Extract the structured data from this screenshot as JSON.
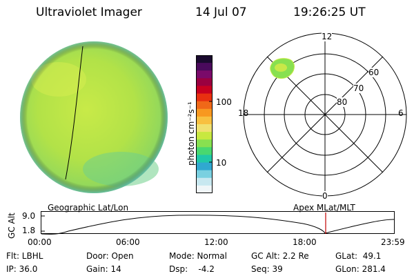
{
  "header": {
    "instrument": "Ultraviolet Imager",
    "date": "14 Jul 07",
    "time": "19:26:25 UT"
  },
  "colorbar": {
    "unit_label": "photon cm⁻²s⁻¹",
    "ticks": [
      "100",
      "10"
    ],
    "colors": [
      "#1a0a2e",
      "#4a0a5c",
      "#7a0a6a",
      "#9a0040",
      "#c80020",
      "#e83010",
      "#f06818",
      "#f89820",
      "#f8c040",
      "#f0e070",
      "#c8e840",
      "#88e050",
      "#48d870",
      "#20c8a8",
      "#30a8d0",
      "#7ad0e0",
      "#c8e8f0",
      "#f0f6f8"
    ]
  },
  "polar": {
    "labels": {
      "top": "12",
      "left": "18",
      "right": "6",
      "bottom": "0"
    },
    "rings": [
      "60",
      "70",
      "80"
    ]
  },
  "timeline": {
    "left_label": "Geographic Lat/Lon",
    "right_label": "Apex MLat/MLT",
    "axis_label": "GC Alt",
    "y_ticks": [
      "9.0",
      "1.8"
    ],
    "x_ticks": [
      "00:00",
      "06:00",
      "12:00",
      "18:00",
      "23:59"
    ]
  },
  "info": {
    "row1": {
      "flt": "Flt: LBHL",
      "door": "Door: Open",
      "mode": "Mode: Normal",
      "gcalt": "GC Alt: 2.2 Re",
      "glat": "GLat:  49.1"
    },
    "row2": {
      "ip": "IP: 36.0",
      "gain": "Gain: 14",
      "dsp": "Dsp:    -4.2",
      "seq": "Seq: 39",
      "glon": "GLon: 281.4"
    }
  }
}
